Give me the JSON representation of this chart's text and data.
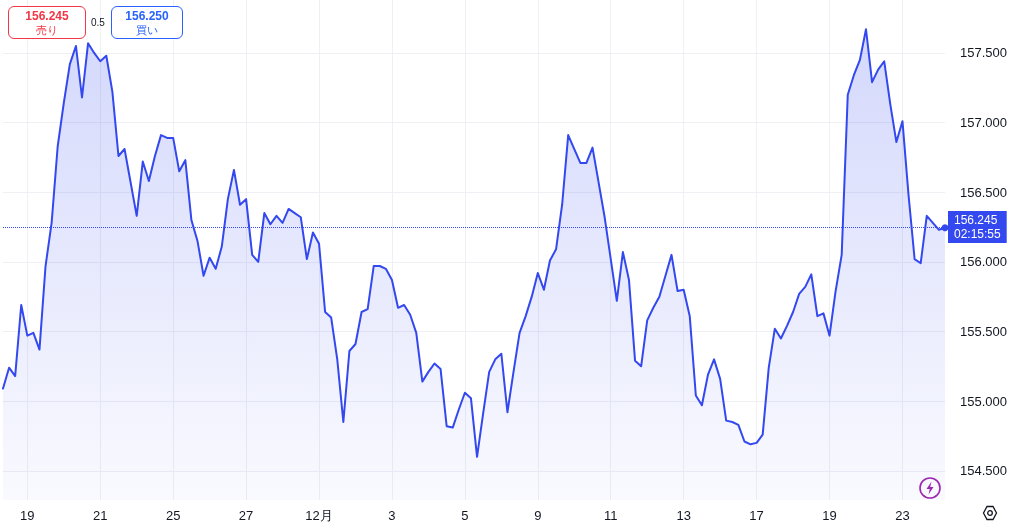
{
  "chart_data": {
    "type": "area",
    "categories": [
      null,
      null,
      null,
      null,
      "19",
      null,
      null,
      null,
      null,
      null,
      null,
      null,
      null,
      null,
      null,
      null,
      "21",
      null,
      null,
      null,
      null,
      null,
      null,
      null,
      null,
      null,
      null,
      null,
      "25",
      null,
      null,
      null,
      null,
      null,
      null,
      null,
      null,
      null,
      null,
      null,
      "27",
      null,
      null,
      null,
      null,
      null,
      null,
      null,
      null,
      null,
      null,
      null,
      "12月",
      null,
      null,
      null,
      null,
      null,
      null,
      null,
      null,
      null,
      null,
      null,
      "3",
      null,
      null,
      null,
      null,
      null,
      null,
      null,
      null,
      null,
      null,
      null,
      "5",
      null,
      null,
      null,
      null,
      null,
      null,
      null,
      null,
      null,
      null,
      null,
      "9",
      null,
      null,
      null,
      null,
      null,
      null,
      null,
      null,
      null,
      null,
      null,
      "11",
      null,
      null,
      null,
      null,
      null,
      null,
      null,
      null,
      null,
      null,
      null,
      "13",
      null,
      null,
      null,
      null,
      null,
      null,
      null,
      null,
      null,
      null,
      null,
      "17",
      null,
      null,
      null,
      null,
      null,
      null,
      null,
      null,
      null,
      null,
      null,
      "19",
      null,
      null,
      null,
      null,
      null,
      null,
      null,
      null,
      null,
      null,
      null,
      "23",
      null,
      null,
      null,
      null,
      null,
      null,
      null
    ],
    "series": [
      {
        "color": "#3348ef",
        "values": [
          155.09,
          155.24,
          155.18,
          155.69,
          155.47,
          155.49,
          155.37,
          155.97,
          156.28,
          156.83,
          157.14,
          157.42,
          157.55,
          157.18,
          157.57,
          157.5,
          157.44,
          157.48,
          157.22,
          156.76,
          156.81,
          156.57,
          156.33,
          156.72,
          156.58,
          156.76,
          156.91,
          156.89,
          156.89,
          156.65,
          156.73,
          156.3,
          156.15,
          155.9,
          156.03,
          155.95,
          156.11,
          156.45,
          156.66,
          156.41,
          156.45,
          156.05,
          156.0,
          156.35,
          156.27,
          156.33,
          156.28,
          156.38,
          156.35,
          156.32,
          156.02,
          156.21,
          156.13,
          155.64,
          155.6,
          155.3,
          154.85,
          155.36,
          155.41,
          155.64,
          155.66,
          155.97,
          155.97,
          155.95,
          155.87,
          155.67,
          155.69,
          155.62,
          155.49,
          155.14,
          155.21,
          155.27,
          155.23,
          154.82,
          154.81,
          154.94,
          155.06,
          155.02,
          154.6,
          154.91,
          155.21,
          155.3,
          155.34,
          154.92,
          155.21,
          155.49,
          155.61,
          155.75,
          155.92,
          155.8,
          156.01,
          156.09,
          156.41,
          156.91,
          156.81,
          156.71,
          156.71,
          156.82,
          156.57,
          156.32,
          156.02,
          155.72,
          156.07,
          155.87,
          155.29,
          155.25,
          155.58,
          155.67,
          155.75,
          155.9,
          156.05,
          155.79,
          155.8,
          155.61,
          155.04,
          154.97,
          155.19,
          155.3,
          155.16,
          154.86,
          154.85,
          154.83,
          154.71,
          154.69,
          154.7,
          154.76,
          155.24,
          155.52,
          155.45,
          155.54,
          155.64,
          155.77,
          155.82,
          155.91,
          155.61,
          155.63,
          155.47,
          155.79,
          156.05,
          157.2,
          157.34,
          157.45,
          157.67,
          157.29,
          157.38,
          157.44,
          157.13,
          156.86,
          157.01,
          156.48,
          156.02,
          155.99,
          156.33,
          156.28,
          156.23,
          156.245
        ]
      }
    ],
    "ylim": [
      154.29,
      157.88
    ],
    "yticks": [
      {
        "value": 154.5,
        "label": "154.500"
      },
      {
        "value": 155,
        "label": "155.000"
      },
      {
        "value": 155.5,
        "label": "155.500"
      },
      {
        "value": 156,
        "label": "156.000"
      },
      {
        "value": 156.5,
        "label": "156.500"
      },
      {
        "value": 157,
        "label": "157.000"
      },
      {
        "value": 157.5,
        "label": "157.500"
      }
    ],
    "grid": true,
    "marker": "none",
    "line_style": "solid",
    "ref_lines": [
      {
        "axis": "y",
        "value": 156.245,
        "label": "156.245\n02:15:55",
        "color": "#3348ef",
        "line_style": "dotted"
      }
    ],
    "annotations": [
      "156.245",
      "売り",
      "0.5",
      "156.250",
      "買い"
    ]
  }
}
